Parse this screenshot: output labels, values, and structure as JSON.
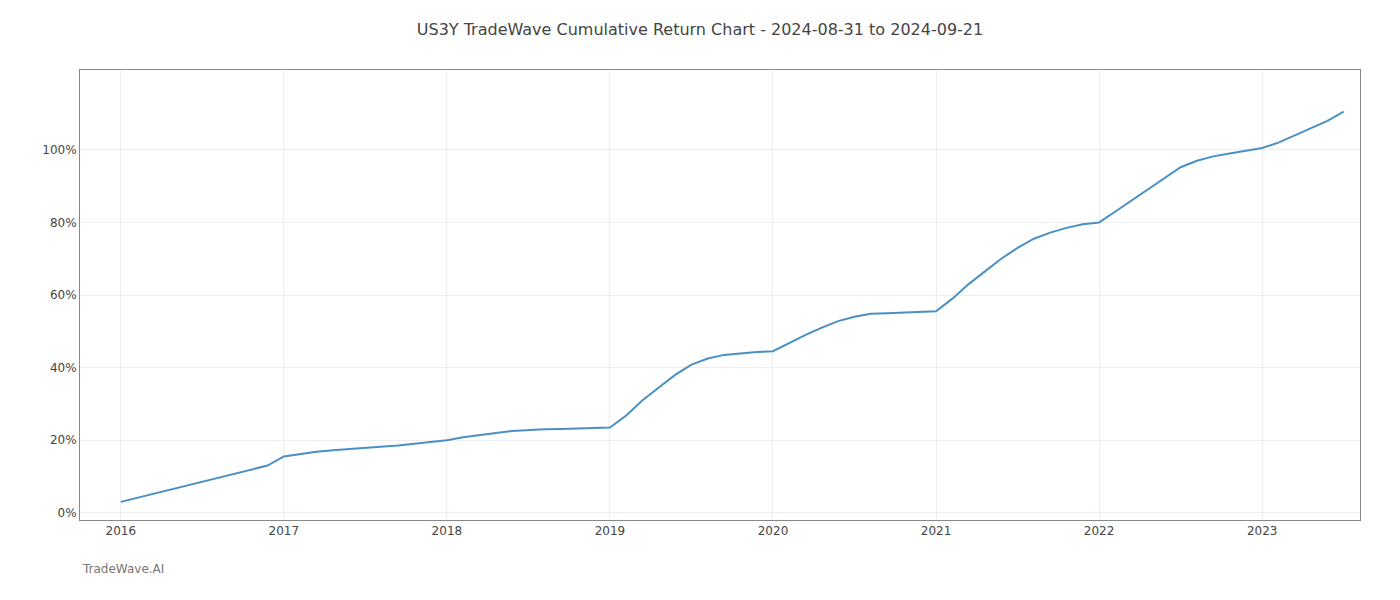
{
  "chart_data": {
    "type": "line",
    "title": "US3Y TradeWave Cumulative Return Chart - 2024-08-31 to 2024-09-21",
    "annotations": [
      "TradeWave.AI"
    ],
    "color": "#4a90c4",
    "grid": true,
    "x": [
      2016.0,
      2016.1,
      2016.2,
      2016.3,
      2016.4,
      2016.5,
      2016.6,
      2016.7,
      2016.8,
      2016.9,
      2017.0,
      2017.1,
      2017.2,
      2017.3,
      2017.4,
      2017.5,
      2017.6,
      2017.7,
      2017.8,
      2017.9,
      2018.0,
      2018.1,
      2018.2,
      2018.3,
      2018.4,
      2018.5,
      2018.6,
      2018.7,
      2018.8,
      2018.9,
      2019.0,
      2019.1,
      2019.2,
      2019.3,
      2019.4,
      2019.5,
      2019.6,
      2019.7,
      2019.8,
      2019.9,
      2020.0,
      2020.1,
      2020.2,
      2020.3,
      2020.4,
      2020.5,
      2020.6,
      2020.7,
      2020.8,
      2020.9,
      2021.0,
      2021.1,
      2021.2,
      2021.3,
      2021.4,
      2021.5,
      2021.6,
      2021.7,
      2021.8,
      2021.9,
      2022.0,
      2022.1,
      2022.2,
      2022.3,
      2022.4,
      2022.5,
      2022.6,
      2022.7,
      2022.8,
      2022.9,
      2023.0,
      2023.1,
      2023.2,
      2023.3,
      2023.4,
      2023.5
    ],
    "values": [
      0.03,
      0.041,
      0.051,
      0.062,
      0.073,
      0.084,
      0.096,
      0.107,
      0.118,
      0.13,
      0.155,
      0.162,
      0.168,
      0.172,
      0.175,
      0.178,
      0.18,
      0.185,
      0.19,
      0.195,
      0.2,
      0.208,
      0.215,
      0.22,
      0.225,
      0.228,
      0.23,
      0.231,
      0.232,
      0.233,
      0.235,
      0.268,
      0.31,
      0.345,
      0.38,
      0.408,
      0.425,
      0.435,
      0.44,
      0.443,
      0.445,
      0.468,
      0.49,
      0.51,
      0.528,
      0.54,
      0.548,
      0.55,
      0.551,
      0.553,
      0.555,
      0.59,
      0.63,
      0.665,
      0.7,
      0.73,
      0.755,
      0.772,
      0.785,
      0.795,
      0.8,
      0.83,
      0.86,
      0.89,
      0.92,
      0.952,
      0.97,
      0.982,
      0.99,
      0.997,
      1.005,
      1.02,
      1.04,
      1.06,
      1.08,
      1.105
    ],
    "xlim": [
      2015.75,
      2023.6
    ],
    "ylim": [
      -0.02,
      1.22
    ],
    "xticks": [
      2016,
      2017,
      2018,
      2019,
      2020,
      2021,
      2022,
      2023
    ],
    "yticks": [
      {
        "value": 0.0,
        "label": "0%"
      },
      {
        "value": 0.2,
        "label": "20%"
      },
      {
        "value": 0.4,
        "label": "40%"
      },
      {
        "value": 0.6,
        "label": "60%"
      },
      {
        "value": 0.8,
        "label": "80%"
      },
      {
        "value": 1.0,
        "label": "100%"
      }
    ]
  }
}
